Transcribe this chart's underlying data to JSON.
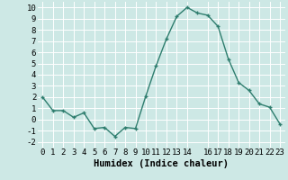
{
  "x": [
    0,
    1,
    2,
    3,
    4,
    5,
    6,
    7,
    8,
    9,
    10,
    11,
    12,
    13,
    14,
    15,
    16,
    17,
    18,
    19,
    20,
    21,
    22,
    23
  ],
  "y": [
    2,
    0.8,
    0.8,
    0.2,
    0.6,
    -0.8,
    -0.7,
    -1.5,
    -0.7,
    -0.8,
    2.1,
    4.8,
    7.2,
    9.2,
    10.0,
    9.5,
    9.3,
    8.3,
    5.4,
    3.3,
    2.6,
    1.4,
    1.1,
    -0.4
  ],
  "line_color": "#2e7d6e",
  "marker": "+",
  "marker_size": 3.5,
  "linewidth": 1.0,
  "markeredgewidth": 1.0,
  "xlabel": "Humidex (Indice chaleur)",
  "xlim": [
    -0.5,
    23.5
  ],
  "ylim": [
    -2.5,
    10.5
  ],
  "yticks": [
    -2,
    -1,
    0,
    1,
    2,
    3,
    4,
    5,
    6,
    7,
    8,
    9,
    10
  ],
  "xticks": [
    0,
    1,
    2,
    3,
    4,
    5,
    6,
    7,
    8,
    9,
    10,
    11,
    12,
    13,
    14,
    16,
    17,
    18,
    19,
    20,
    21,
    22,
    23
  ],
  "bg_color": "#cde8e5",
  "grid_color": "#ffffff",
  "tick_label_fontsize": 6.5,
  "xlabel_fontsize": 7.5
}
